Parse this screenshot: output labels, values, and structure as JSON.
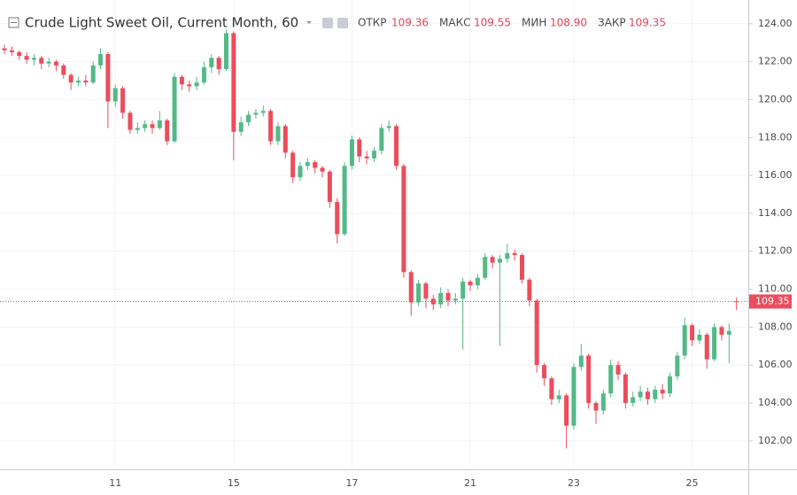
{
  "chart_data": {
    "type": "candlestick",
    "title": "Crude Light Sweet Oil, Current Month, 60",
    "header": {
      "open_label": "ОТКР",
      "open": "109.36",
      "high_label": "МАКС",
      "high": "109.55",
      "low_label": "МИН",
      "low": "108.90",
      "close_label": "ЗАКР",
      "close": "109.35"
    },
    "last_price": {
      "value": 109.35,
      "label": "109.35"
    },
    "up_color": "#53b987",
    "down_color": "#eb4d5c",
    "ylim": [
      100.5,
      125.25
    ],
    "yticks": [
      {
        "value": 102,
        "label": "102.00"
      },
      {
        "value": 104,
        "label": "104.00"
      },
      {
        "value": 106,
        "label": "106.00"
      },
      {
        "value": 108,
        "label": "108.00"
      },
      {
        "value": 110,
        "label": "110.00"
      },
      {
        "value": 112,
        "label": "112.00"
      },
      {
        "value": 114,
        "label": "114.00"
      },
      {
        "value": 116,
        "label": "116.00"
      },
      {
        "value": 118,
        "label": "118.00"
      },
      {
        "value": 120,
        "label": "120.00"
      },
      {
        "value": 122,
        "label": "122.00"
      },
      {
        "value": 124,
        "label": "124.00"
      }
    ],
    "grid": true,
    "categories": [
      null,
      null,
      null,
      null,
      null,
      null,
      null,
      null,
      null,
      null,
      null,
      null,
      null,
      null,
      null,
      "11",
      null,
      null,
      null,
      null,
      null,
      null,
      null,
      null,
      null,
      null,
      null,
      null,
      null,
      null,
      null,
      "15",
      null,
      null,
      null,
      null,
      null,
      null,
      null,
      null,
      null,
      null,
      null,
      null,
      null,
      null,
      null,
      "17",
      null,
      null,
      null,
      null,
      null,
      null,
      null,
      null,
      null,
      null,
      null,
      null,
      null,
      null,
      null,
      "21",
      null,
      null,
      null,
      null,
      null,
      null,
      null,
      null,
      null,
      null,
      null,
      null,
      null,
      "23",
      null,
      null,
      null,
      null,
      null,
      null,
      null,
      null,
      null,
      null,
      null,
      null,
      null,
      null,
      null,
      "25",
      null,
      null,
      null,
      null,
      null,
      null
    ],
    "open": [
      122.7,
      122.6,
      122.5,
      122.3,
      122.1,
      122.2,
      121.9,
      122.0,
      121.8,
      121.3,
      120.9,
      121.0,
      120.9,
      121.8,
      122.4,
      119.9,
      120.6,
      119.3,
      118.4,
      118.5,
      118.7,
      118.5,
      118.9,
      117.8,
      121.2,
      120.8,
      120.7,
      120.9,
      121.7,
      122.2,
      121.6,
      123.5,
      118.3,
      118.8,
      119.2,
      119.3,
      119.4,
      117.8,
      118.6,
      117.2,
      115.9,
      116.5,
      116.7,
      116.4,
      116.2,
      114.6,
      112.9,
      116.5,
      117.9,
      117.0,
      116.9,
      117.3,
      118.5,
      118.6,
      116.5,
      110.9,
      109.3,
      110.3,
      109.5,
      109.2,
      109.8,
      109.4,
      109.5,
      110.4,
      110.2,
      110.6,
      111.7,
      111.4,
      111.6,
      111.9,
      111.8,
      110.5,
      109.4,
      106.0,
      105.3,
      104.2,
      104.4,
      102.8,
      105.9,
      106.5,
      104.0,
      103.6,
      104.5,
      106.0,
      105.5,
      104.0,
      104.3,
      104.6,
      104.2,
      104.7,
      104.5,
      105.4,
      106.5,
      108.1,
      107.3,
      107.6,
      106.3,
      108.0,
      107.6,
      109.36
    ],
    "high": [
      122.9,
      122.8,
      122.6,
      122.5,
      122.4,
      122.3,
      122.2,
      122.1,
      121.9,
      121.4,
      121.2,
      121.3,
      122.0,
      122.7,
      122.5,
      120.8,
      120.7,
      119.4,
      118.8,
      118.9,
      118.9,
      119.4,
      119.0,
      121.4,
      121.3,
      121.0,
      121.2,
      122.0,
      122.4,
      122.3,
      123.7,
      123.6,
      119.1,
      119.4,
      119.5,
      119.7,
      119.5,
      118.8,
      118.7,
      117.3,
      116.7,
      116.9,
      116.8,
      116.5,
      116.3,
      114.8,
      116.7,
      118.1,
      118.0,
      117.3,
      117.5,
      118.7,
      118.9,
      118.7,
      116.6,
      111.0,
      110.5,
      110.4,
      109.7,
      110.1,
      110.0,
      109.8,
      110.6,
      110.5,
      110.8,
      111.9,
      111.8,
      111.8,
      112.4,
      112.1,
      111.9,
      110.6,
      109.5,
      106.1,
      105.4,
      104.7,
      104.5,
      106.1,
      107.1,
      106.6,
      104.1,
      104.7,
      106.3,
      106.2,
      105.6,
      104.6,
      104.9,
      104.8,
      104.9,
      105.0,
      105.6,
      106.7,
      108.5,
      108.2,
      107.9,
      107.7,
      108.2,
      108.1,
      108.2,
      109.55
    ],
    "low": [
      122.4,
      122.3,
      122.1,
      121.9,
      121.8,
      121.6,
      121.7,
      121.5,
      121.1,
      120.5,
      120.7,
      120.7,
      120.8,
      121.6,
      118.5,
      119.6,
      119.0,
      118.2,
      118.2,
      118.3,
      118.2,
      118.4,
      117.6,
      117.7,
      120.5,
      120.4,
      120.5,
      120.8,
      121.4,
      121.3,
      121.5,
      116.8,
      118.1,
      118.6,
      119.0,
      119.1,
      117.6,
      117.6,
      116.9,
      115.6,
      115.7,
      116.3,
      116.1,
      115.9,
      114.3,
      112.4,
      112.8,
      116.3,
      116.7,
      116.6,
      116.7,
      117.1,
      118.3,
      116.3,
      110.6,
      108.6,
      109.1,
      109.0,
      108.9,
      109.0,
      109.1,
      109.2,
      106.8,
      109.9,
      110.0,
      110.5,
      111.1,
      107.0,
      111.4,
      111.5,
      110.3,
      109.1,
      105.6,
      104.9,
      103.9,
      104.0,
      101.6,
      102.6,
      105.7,
      103.7,
      102.9,
      103.4,
      104.3,
      105.2,
      103.7,
      103.8,
      104.1,
      103.9,
      104.0,
      104.2,
      104.3,
      105.2,
      106.3,
      107.0,
      107.1,
      105.8,
      106.2,
      107.3,
      106.1,
      108.9
    ],
    "close": [
      122.6,
      122.5,
      122.3,
      122.1,
      122.2,
      121.9,
      122.0,
      121.8,
      121.3,
      120.9,
      121.0,
      120.9,
      121.8,
      122.4,
      119.9,
      120.6,
      119.3,
      118.4,
      118.5,
      118.7,
      118.5,
      118.9,
      117.8,
      121.2,
      120.8,
      120.7,
      120.9,
      121.7,
      122.2,
      121.6,
      123.5,
      118.3,
      118.8,
      119.2,
      119.3,
      119.4,
      117.8,
      118.6,
      117.2,
      115.9,
      116.5,
      116.7,
      116.4,
      116.2,
      114.6,
      112.9,
      116.5,
      117.9,
      117.0,
      116.9,
      117.3,
      118.5,
      118.6,
      116.5,
      110.9,
      109.3,
      110.3,
      109.5,
      109.2,
      109.8,
      109.4,
      109.5,
      110.4,
      110.2,
      110.6,
      111.7,
      111.4,
      111.6,
      111.9,
      111.8,
      110.5,
      109.4,
      106.0,
      105.3,
      104.2,
      104.4,
      102.8,
      105.9,
      106.5,
      104.0,
      103.6,
      104.5,
      106.0,
      105.5,
      104.0,
      104.3,
      104.6,
      104.2,
      104.7,
      104.5,
      105.4,
      106.5,
      108.1,
      107.3,
      107.6,
      106.3,
      108.0,
      107.6,
      107.8,
      109.35
    ]
  }
}
